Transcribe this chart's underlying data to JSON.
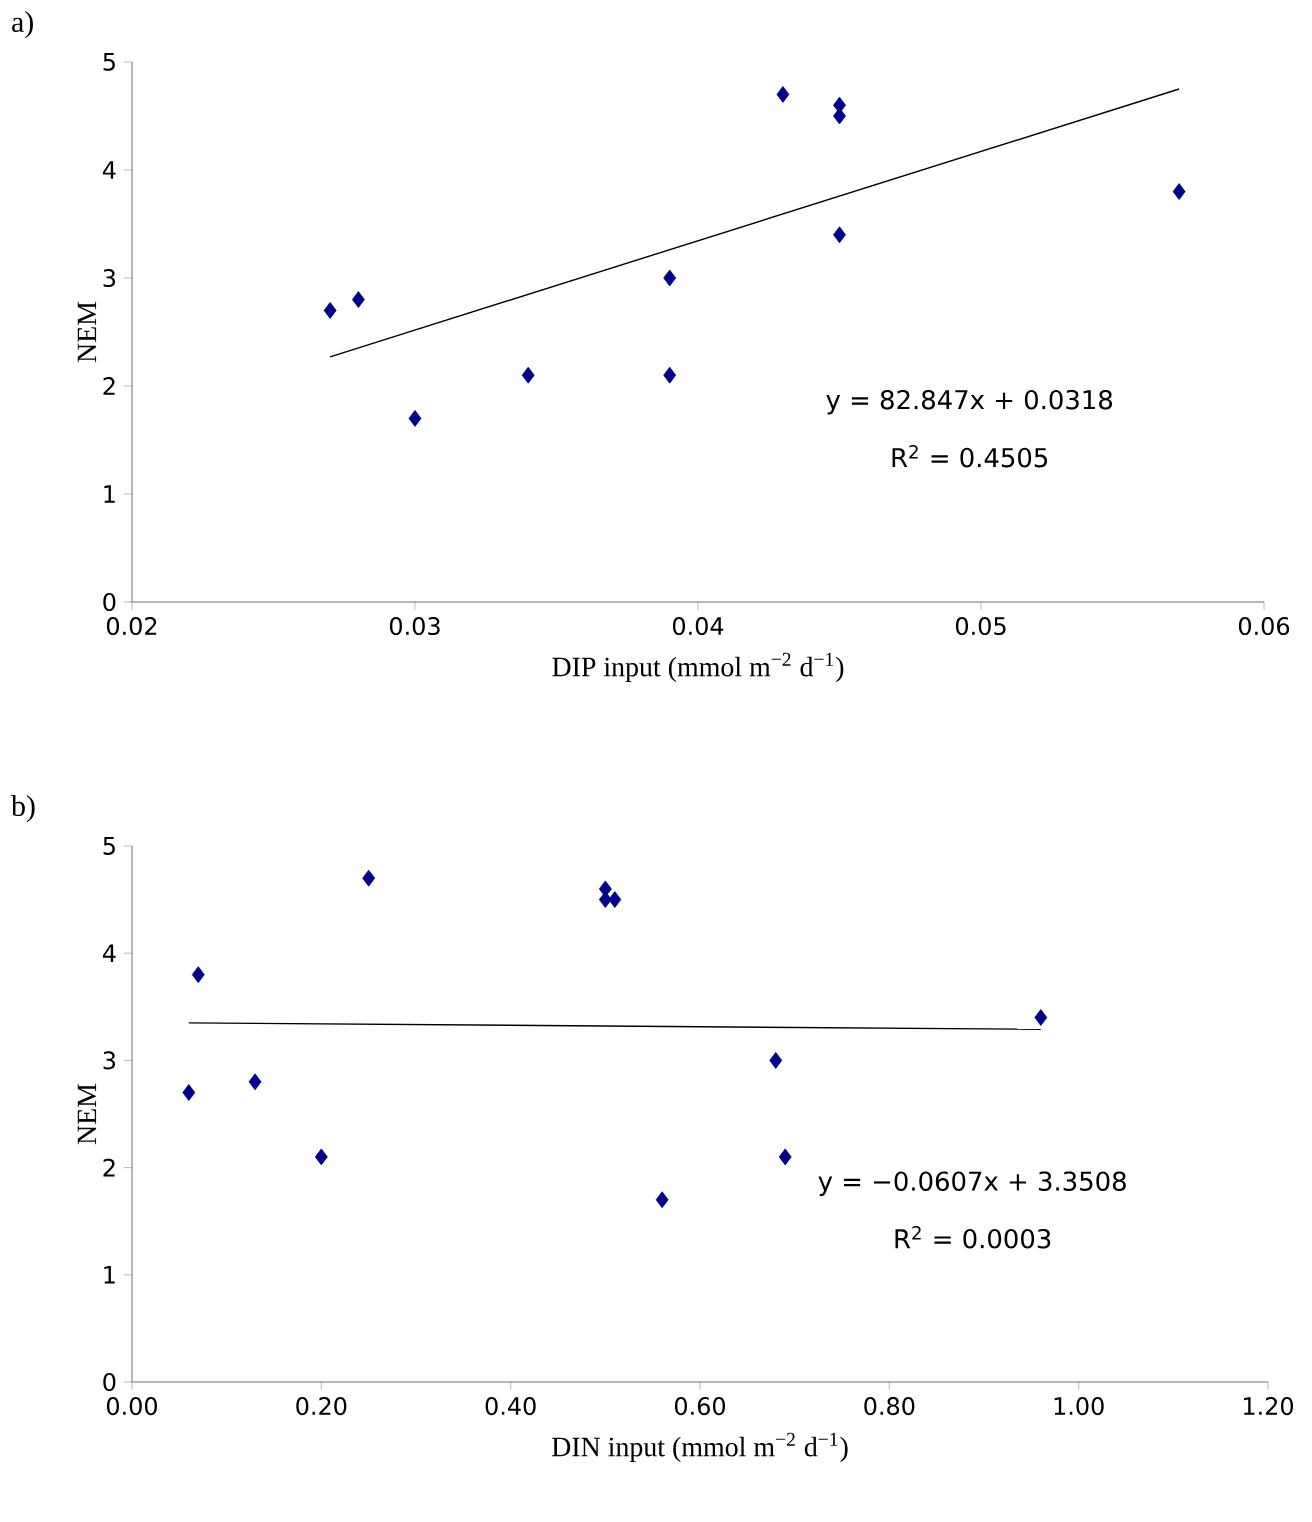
{
  "chart_data": [
    {
      "type": "scatter",
      "title": "a)",
      "xlabel": "DIP input (mmol m$^{−2}$ d$^{−1}$)",
      "ylabel": "NEM",
      "annotations": [
        "y = 82.847x + 0.0318",
        "R$^{2}$ = 0.4505"
      ],
      "xlim": [
        0.02,
        0.06
      ],
      "ylim": [
        0,
        5
      ],
      "xticks": [
        0.02,
        0.03,
        0.04,
        0.05,
        0.06
      ],
      "yticks": [
        0,
        1,
        2,
        3,
        4,
        5
      ],
      "grid": false,
      "series": [
        {
          "marker": "diamond",
          "color": "#00008b",
          "x": [
            0.027,
            0.028,
            0.03,
            0.034,
            0.039,
            0.039,
            0.043,
            0.045,
            0.045,
            0.045,
            0.057
          ],
          "values": [
            2.7,
            2.8,
            1.7,
            2.1,
            3.0,
            2.1,
            4.7,
            4.6,
            4.5,
            3.4,
            3.8
          ]
        },
        {
          "type": "line",
          "marker": "none",
          "color": "#000000",
          "x": [
            0.027,
            0.057
          ],
          "values": [
            2.27,
            4.75
          ]
        }
      ]
    },
    {
      "type": "scatter",
      "title": "b)",
      "xlabel": "DIN input (mmol m$^{−2}$ d$^{−1}$)",
      "ylabel": "NEM",
      "annotations": [
        "y = −0.0607x + 3.3508",
        "R$^{2}$ = 0.0003"
      ],
      "xlim": [
        0,
        1.2
      ],
      "ylim": [
        0,
        5
      ],
      "xticks": [
        {
          "value": 0,
          "label": "0.00"
        },
        {
          "value": 0.2,
          "label": "0.20"
        },
        {
          "value": 0.4,
          "label": "0.40"
        },
        {
          "value": 0.6,
          "label": "0.60"
        },
        {
          "value": 0.8,
          "label": "0.80"
        },
        {
          "value": 1.0,
          "label": "1.00"
        },
        {
          "value": 1.2,
          "label": "1.20"
        }
      ],
      "yticks": [
        0,
        1,
        2,
        3,
        4,
        5
      ],
      "grid": false,
      "series": [
        {
          "marker": "diamond",
          "color": "#00008b",
          "x": [
            0.06,
            0.07,
            0.13,
            0.2,
            0.25,
            0.5,
            0.5,
            0.51,
            0.56,
            0.68,
            0.69,
            0.96
          ],
          "values": [
            2.7,
            3.8,
            2.8,
            2.1,
            4.7,
            4.6,
            4.5,
            4.5,
            1.7,
            3.0,
            2.1,
            3.4
          ]
        },
        {
          "type": "line",
          "marker": "none",
          "color": "#000000",
          "x": [
            0.06,
            0.96
          ],
          "values": [
            3.35,
            3.29
          ]
        }
      ]
    }
  ]
}
